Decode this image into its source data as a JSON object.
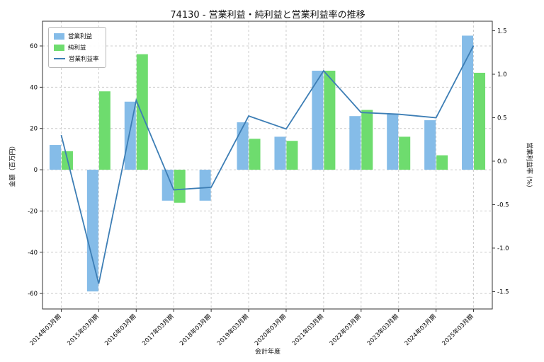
{
  "chart_data": {
    "type": "bar+line",
    "title": "74130 - 営業利益・純利益と営業利益率の推移",
    "xlabel": "会計年度",
    "ylabel_left": "金額（百万円）",
    "ylabel_right": "営業利益率 (%)",
    "categories": [
      "2014年03月期",
      "2015年03月期",
      "2016年03月期",
      "2017年03月期",
      "2018年03月期",
      "2019年03月期",
      "2020年03月期",
      "2021年03月期",
      "2022年03月期",
      "2023年03月期",
      "2024年03月期",
      "2025年03月期"
    ],
    "series": [
      {
        "key": "operating-profit",
        "name": "営業利益",
        "type": "bar",
        "axis": "left",
        "color": "#85bce8",
        "values": [
          12,
          -59,
          33,
          -15,
          -15,
          23,
          16,
          48,
          26,
          27,
          24,
          65
        ]
      },
      {
        "key": "net-profit",
        "name": "純利益",
        "type": "bar",
        "axis": "left",
        "color": "#6edc6e",
        "values": [
          9,
          38,
          56,
          -16,
          0,
          15,
          14,
          48,
          29,
          16,
          7,
          47
        ]
      },
      {
        "key": "operating-margin",
        "name": "営業利益率",
        "type": "line",
        "axis": "right",
        "color": "#3d7eb5",
        "values": [
          0.3,
          -1.41,
          0.7,
          -0.33,
          -0.3,
          0.52,
          0.37,
          1.04,
          0.56,
          0.54,
          0.5,
          1.33
        ]
      }
    ],
    "left_ticks": [
      -60,
      -40,
      -20,
      0,
      20,
      40,
      60
    ],
    "right_ticks": [
      -1.5,
      -1.0,
      -0.5,
      0.0,
      0.5,
      1.0,
      1.5
    ],
    "ylim_left": [
      -67.5,
      72
    ],
    "ylim_right": [
      -1.7,
      1.61
    ],
    "grid": true,
    "legend_position": "upper-left"
  }
}
